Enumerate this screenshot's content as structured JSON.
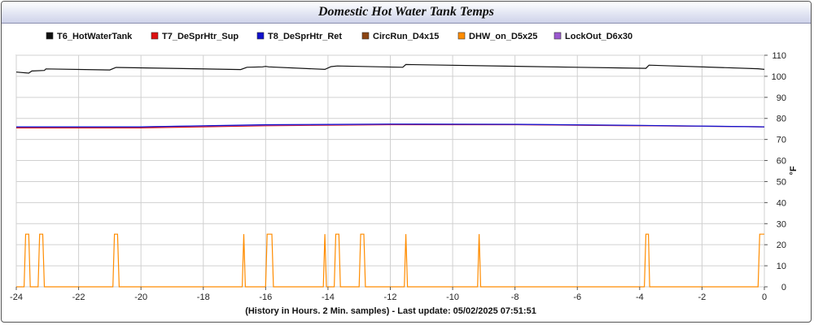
{
  "chart_data": {
    "type": "line",
    "title": "Domestic Hot Water Tank Temps",
    "xlabel": "(History in Hours. 2 Min. samples) - Last update: 05/02/2025 07:51:51",
    "ylabel": "°F",
    "xlim": [
      -24,
      0
    ],
    "ylim": [
      0,
      110
    ],
    "xticks": [
      -24,
      -22,
      -20,
      -18,
      -16,
      -14,
      -12,
      -10,
      -8,
      -6,
      -4,
      -2,
      0
    ],
    "yticks": [
      0,
      10,
      20,
      30,
      40,
      50,
      60,
      70,
      80,
      90,
      100,
      110
    ],
    "grid": true,
    "legend_position": "top",
    "series": [
      {
        "name": "T6_HotWaterTank",
        "color": "#111111",
        "points": [
          [
            -24,
            102
          ],
          [
            -23.6,
            101.5
          ],
          [
            -23.5,
            102.5
          ],
          [
            -23.1,
            102.8
          ],
          [
            -23.05,
            103.5
          ],
          [
            -21,
            103
          ],
          [
            -20.8,
            104.2
          ],
          [
            -16.8,
            103.2
          ],
          [
            -16.6,
            104.3
          ],
          [
            -16.1,
            104.5
          ],
          [
            -16,
            104.7
          ],
          [
            -15.9,
            104.5
          ],
          [
            -14.1,
            103.3
          ],
          [
            -13.9,
            104.6
          ],
          [
            -13.7,
            104.9
          ],
          [
            -11.6,
            104.3
          ],
          [
            -11.5,
            105.6
          ],
          [
            -6,
            104.3
          ],
          [
            -3.8,
            103.8
          ],
          [
            -3.7,
            105.3
          ],
          [
            -0.2,
            103.6
          ],
          [
            0,
            103.3
          ]
        ]
      },
      {
        "name": "T7_DeSprHtr_Sup",
        "color": "#dd1111",
        "points": [
          [
            -24,
            75.5
          ],
          [
            -20,
            75.5
          ],
          [
            -16,
            76.5
          ],
          [
            -12,
            77
          ],
          [
            -8,
            77
          ],
          [
            -4,
            76.5
          ],
          [
            0,
            76
          ]
        ]
      },
      {
        "name": "T8_DeSprHtr_Ret",
        "color": "#1111cc",
        "points": [
          [
            -24,
            76
          ],
          [
            -20,
            76
          ],
          [
            -16,
            77
          ],
          [
            -12,
            77.3
          ],
          [
            -8,
            77.2
          ],
          [
            -4,
            76.7
          ],
          [
            0,
            76
          ]
        ]
      },
      {
        "name": "CircRun_D4x15",
        "color": "#8b4513",
        "points": []
      },
      {
        "name": "DHW_on_D5x25",
        "color": "#ff8c00",
        "points": [
          [
            -24,
            0
          ],
          [
            -23.75,
            0
          ],
          [
            -23.7,
            25
          ],
          [
            -23.6,
            25
          ],
          [
            -23.55,
            0
          ],
          [
            -23.3,
            0
          ],
          [
            -23.25,
            25
          ],
          [
            -23.15,
            25
          ],
          [
            -23.1,
            0
          ],
          [
            -20.9,
            0
          ],
          [
            -20.85,
            25
          ],
          [
            -20.75,
            25
          ],
          [
            -20.7,
            0
          ],
          [
            -16.75,
            0
          ],
          [
            -16.7,
            25
          ],
          [
            -16.65,
            0
          ],
          [
            -16.0,
            0
          ],
          [
            -15.95,
            25
          ],
          [
            -15.8,
            25
          ],
          [
            -15.75,
            0
          ],
          [
            -14.15,
            0
          ],
          [
            -14.1,
            25
          ],
          [
            -14.05,
            0
          ],
          [
            -13.8,
            0
          ],
          [
            -13.75,
            25
          ],
          [
            -13.65,
            25
          ],
          [
            -13.6,
            0
          ],
          [
            -13.0,
            0
          ],
          [
            -12.95,
            25
          ],
          [
            -12.85,
            25
          ],
          [
            -12.8,
            0
          ],
          [
            -11.55,
            0
          ],
          [
            -11.5,
            25
          ],
          [
            -11.45,
            0
          ],
          [
            -9.2,
            0
          ],
          [
            -9.15,
            25
          ],
          [
            -9.1,
            0
          ],
          [
            -3.85,
            0
          ],
          [
            -3.8,
            25
          ],
          [
            -3.72,
            25
          ],
          [
            -3.68,
            0
          ],
          [
            -0.2,
            0
          ],
          [
            -0.15,
            25
          ],
          [
            0,
            25
          ]
        ]
      },
      {
        "name": "LockOut_D6x30",
        "color": "#9b59d0",
        "points": [
          [
            -24,
            76
          ],
          [
            -20,
            76
          ],
          [
            -16,
            76.8
          ],
          [
            -12,
            77.2
          ],
          [
            -8,
            77.1
          ],
          [
            -4,
            76.6
          ],
          [
            0,
            76
          ]
        ]
      }
    ]
  }
}
